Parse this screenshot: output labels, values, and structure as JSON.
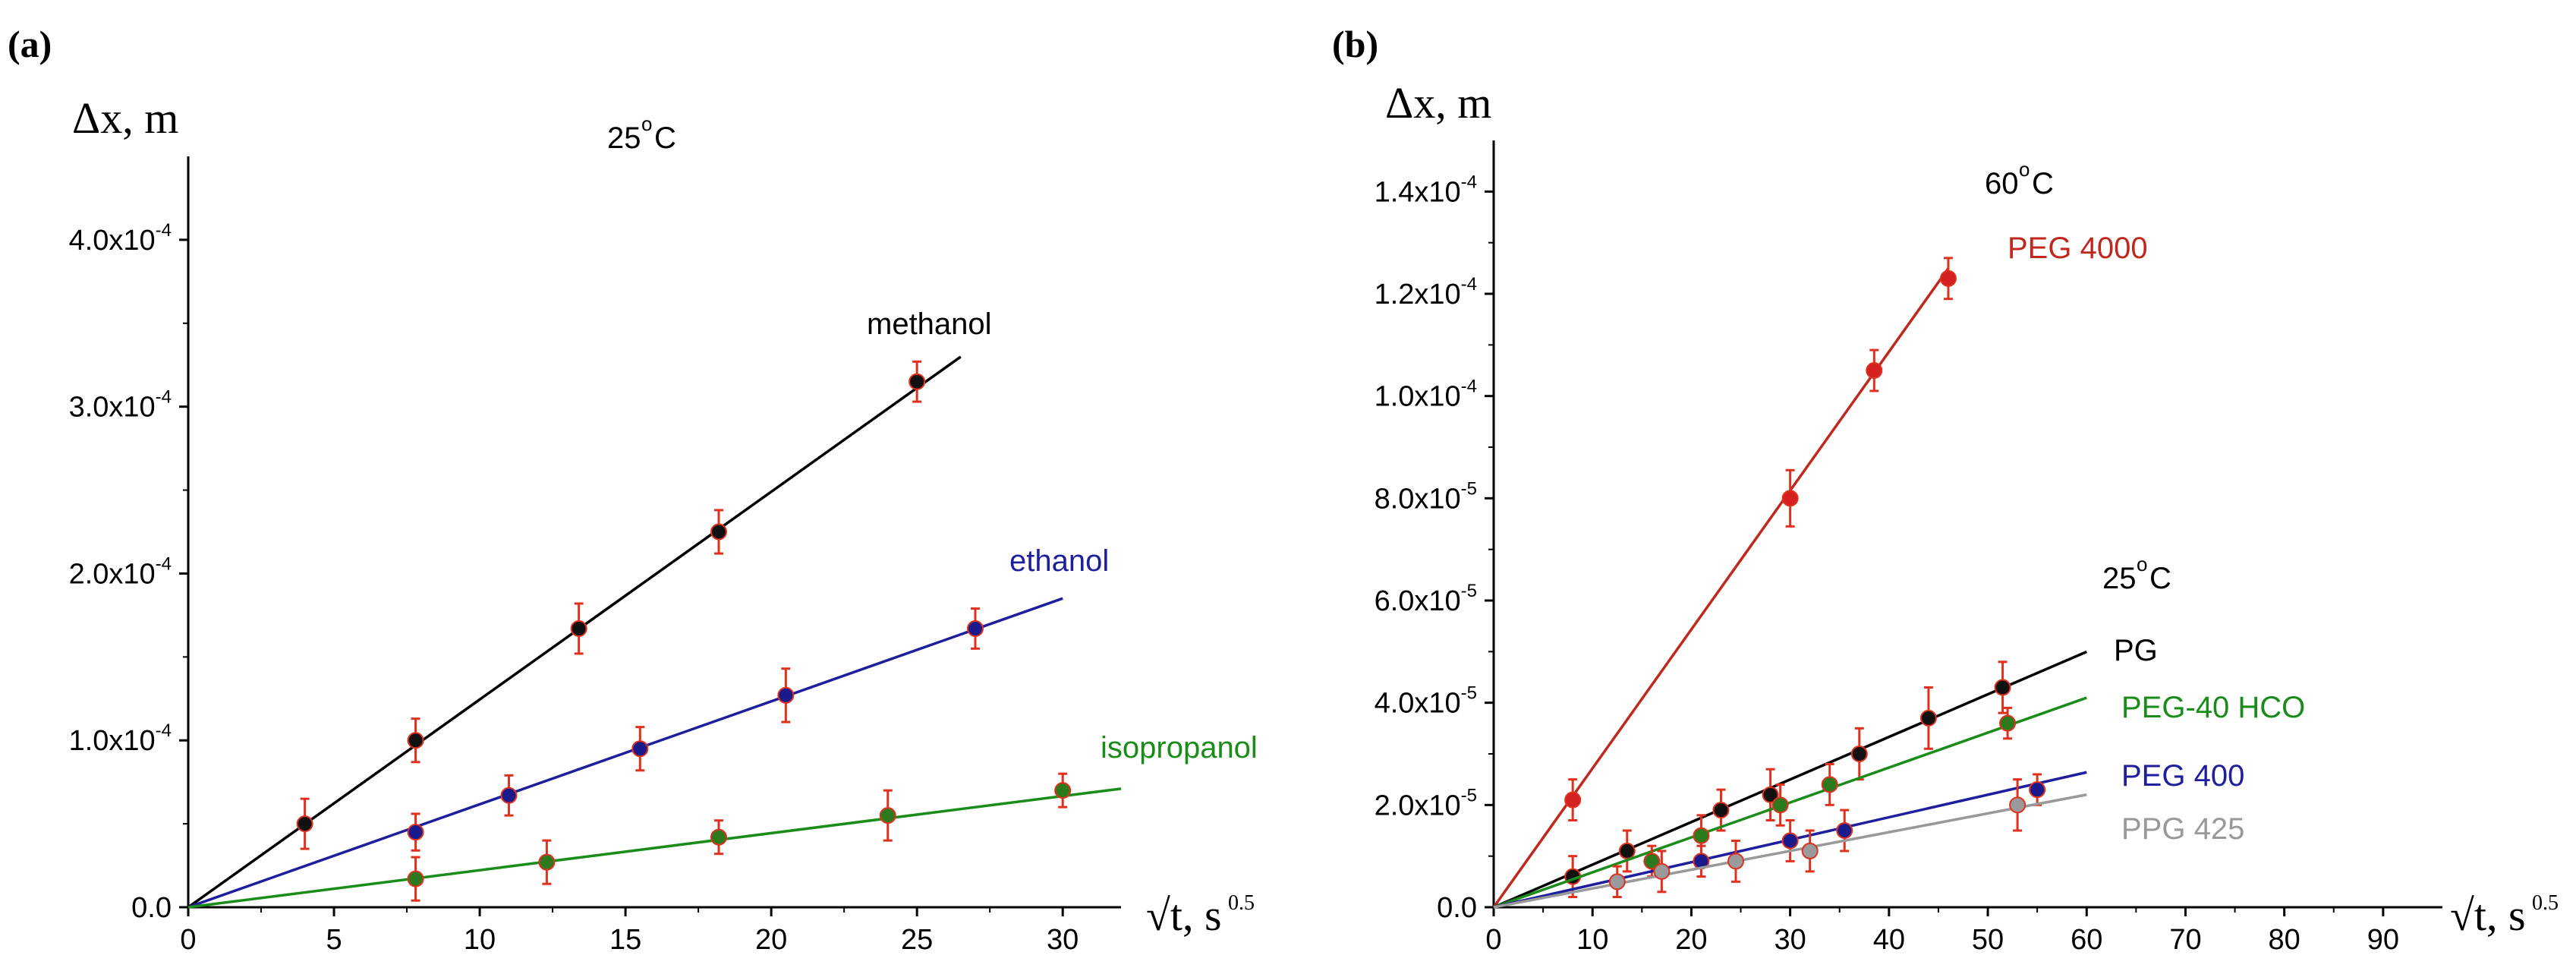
{
  "chart_data": [
    {
      "type": "scatter",
      "panel_label": "(a)",
      "ylabel": "Δx, m",
      "xlabel": "√t, s",
      "xlabel_sup": "0.5",
      "temperatures": [
        {
          "text": "25",
          "sup": "o",
          "unit": "C"
        }
      ],
      "xlim": [
        0,
        32
      ],
      "ylim": [
        0,
        0.00045
      ],
      "x_ticks": [
        0,
        5,
        10,
        15,
        20,
        25,
        30
      ],
      "x_tick_labels": [
        "0",
        "5",
        "10",
        "15",
        "20",
        "25",
        "30"
      ],
      "y_ticks": [
        0,
        0.0001,
        0.0002,
        0.0003,
        0.0004
      ],
      "y_tick_labels": [
        {
          "mant": "0.0",
          "exp": ""
        },
        {
          "mant": "1.0x10",
          "exp": "-4"
        },
        {
          "mant": "2.0x10",
          "exp": "-4"
        },
        {
          "mant": "3.0x10",
          "exp": "-4"
        },
        {
          "mant": "4.0x10",
          "exp": "-4"
        }
      ],
      "series": [
        {
          "name": "methanol",
          "color": "#000000",
          "point_color": "#111111",
          "fit": {
            "x0": 0,
            "x1": 26.5,
            "slope": 1.245e-05
          },
          "x": [
            4,
            7.8,
            13.4,
            18.2,
            25
          ],
          "y": [
            5e-05,
            0.0001,
            0.000167,
            0.000225,
            0.000315
          ],
          "err": [
            1.5e-05,
            1.3e-05,
            1.5e-05,
            1.3e-05,
            1.2e-05
          ]
        },
        {
          "name": "ethanol",
          "color": "#1f1f9e",
          "point_color": "#1a1a8c",
          "fit": {
            "x0": 0,
            "x1": 30,
            "slope": 6.17e-06
          },
          "x": [
            7.8,
            11,
            15.5,
            20.5,
            27
          ],
          "y": [
            4.5e-05,
            6.7e-05,
            9.5e-05,
            0.000127,
            0.000167
          ],
          "err": [
            1.1e-05,
            1.2e-05,
            1.3e-05,
            1.6e-05,
            1.2e-05
          ]
        },
        {
          "name": "isopropanol",
          "color": "#1a8c1a",
          "point_color": "#2d7a1e",
          "fit": {
            "x0": 0,
            "x1": 32,
            "slope": 2.22e-06
          },
          "x": [
            7.8,
            12.3,
            18.2,
            24,
            30
          ],
          "y": [
            1.7e-05,
            2.7e-05,
            4.2e-05,
            5.5e-05,
            7e-05
          ],
          "err": [
            1.3e-05,
            1.3e-05,
            1e-05,
            1.5e-05,
            1e-05
          ]
        }
      ]
    },
    {
      "type": "scatter",
      "panel_label": "(b)",
      "ylabel": "Δx, m",
      "xlabel": "√t, s",
      "xlabel_sup": "0.5",
      "temperatures": [
        {
          "text": "60",
          "sup": "o",
          "unit": "C"
        },
        {
          "text": "25",
          "sup": "o",
          "unit": "C"
        }
      ],
      "xlim": [
        0,
        96
      ],
      "ylim": [
        0,
        0.00015
      ],
      "x_ticks": [
        0,
        10,
        20,
        30,
        40,
        50,
        60,
        70,
        80,
        90
      ],
      "x_tick_labels": [
        "0",
        "10",
        "20",
        "30",
        "40",
        "50",
        "60",
        "70",
        "80",
        "90"
      ],
      "y_ticks": [
        0,
        2e-05,
        4e-05,
        6e-05,
        8e-05,
        0.0001,
        0.00012,
        0.00014
      ],
      "y_tick_labels": [
        {
          "mant": "0.0",
          "exp": ""
        },
        {
          "mant": "2.0x10",
          "exp": "-5"
        },
        {
          "mant": "4.0x10",
          "exp": "-5"
        },
        {
          "mant": "6.0x10",
          "exp": "-5"
        },
        {
          "mant": "8.0x10",
          "exp": "-5"
        },
        {
          "mant": "1.0x10",
          "exp": "-4"
        },
        {
          "mant": "1.2x10",
          "exp": "-4"
        },
        {
          "mant": "1.4x10",
          "exp": "-4"
        }
      ],
      "series": [
        {
          "name": "PEG 4000",
          "color": "#c0281e",
          "point_color": "#d42020",
          "fit": {
            "x0": 0,
            "x1": 46,
            "slope": 2.717e-06
          },
          "x": [
            8,
            30,
            38.5,
            46
          ],
          "y": [
            2.1e-05,
            8e-05,
            0.000105,
            0.000123
          ],
          "err": [
            4e-06,
            5.5e-06,
            4e-06,
            4e-06
          ]
        },
        {
          "name": "PG",
          "color": "#000000",
          "point_color": "#111111",
          "fit": {
            "x0": 0,
            "x1": 60,
            "slope": 8.33e-07
          },
          "x": [
            8,
            13.5,
            23,
            28,
            37,
            44,
            51.5
          ],
          "y": [
            6e-06,
            1.1e-05,
            1.9e-05,
            2.2e-05,
            3e-05,
            3.7e-05,
            4.3e-05
          ],
          "err": [
            4e-06,
            4e-06,
            4e-06,
            5e-06,
            5e-06,
            6e-06,
            5e-06
          ]
        },
        {
          "name": "PEG-40 HCO",
          "color": "#1a8c1a",
          "point_color": "#2d7a1e",
          "fit": {
            "x0": 0,
            "x1": 60,
            "slope": 6.83e-07
          },
          "x": [
            16,
            21,
            29,
            34,
            52
          ],
          "y": [
            9e-06,
            1.4e-05,
            2e-05,
            2.4e-05,
            3.6e-05
          ],
          "err": [
            3e-06,
            4e-06,
            4e-06,
            4e-06,
            3e-06
          ]
        },
        {
          "name": "PEG 400",
          "color": "#1f1f9e",
          "point_color": "#1a1a8c",
          "fit": {
            "x0": 0,
            "x1": 60,
            "slope": 4.4e-07
          },
          "x": [
            21,
            30,
            35.5,
            55
          ],
          "y": [
            9e-06,
            1.3e-05,
            1.5e-05,
            2.3e-05
          ],
          "err": [
            3e-06,
            4e-06,
            4e-06,
            3e-06
          ]
        },
        {
          "name": "PPG 425",
          "color": "#999999",
          "point_color": "#9a9a9a",
          "fit": {
            "x0": 0,
            "x1": 60,
            "slope": 3.67e-07
          },
          "x": [
            12.5,
            17,
            24.5,
            32,
            53
          ],
          "y": [
            5e-06,
            7e-06,
            9e-06,
            1.1e-05,
            2e-05
          ],
          "err": [
            3e-06,
            4e-06,
            4e-06,
            4e-06,
            5e-06
          ]
        }
      ]
    }
  ]
}
